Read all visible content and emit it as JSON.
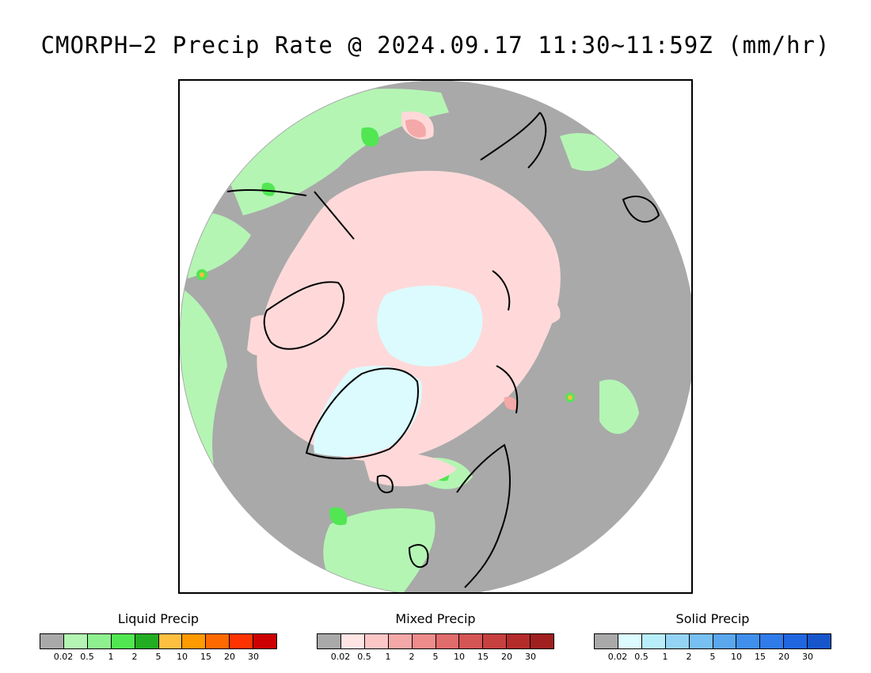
{
  "title": "CMORPH−2 Precip Rate @ 2024.09.17 11:30~11:59Z (mm/hr)",
  "map": {
    "projection": "north polar stereographic",
    "colors": {
      "no_precip": "#a9a9a9",
      "liquid_light": "#b4f5b4",
      "mixed_light": "#ffd9d9",
      "solid_light": "#dcfbff",
      "coastline": "#000000",
      "background": "#ffffff"
    }
  },
  "legends": [
    {
      "title": "Liquid Precip",
      "colors": [
        "#a9a9a9",
        "#b4f5b4",
        "#8ff08f",
        "#52e652",
        "#23ad23",
        "#ffbf40",
        "#ff9a00",
        "#ff6a00",
        "#ff3300",
        "#cc0000"
      ],
      "ticks": [
        "0.02",
        "0.5",
        "1",
        "2",
        "5",
        "10",
        "15",
        "20",
        "30"
      ]
    },
    {
      "title": "Mixed Precip",
      "colors": [
        "#a9a9a9",
        "#ffe4e4",
        "#fcc6c6",
        "#f5a8a8",
        "#ee8b8b",
        "#e06c6c",
        "#d55555",
        "#c74040",
        "#b52b2b",
        "#a01f1f"
      ],
      "ticks": [
        "0.02",
        "0.5",
        "1",
        "2",
        "5",
        "10",
        "15",
        "20",
        "30"
      ]
    },
    {
      "title": "Solid Precip",
      "colors": [
        "#a9a9a9",
        "#dcfbff",
        "#b7eefa",
        "#95d3f5",
        "#78bff2",
        "#5aa7ee",
        "#408fec",
        "#2f7bea",
        "#1f66e0",
        "#1755cc"
      ],
      "ticks": [
        "0.02",
        "0.5",
        "1",
        "2",
        "5",
        "10",
        "15",
        "20",
        "30"
      ]
    }
  ]
}
